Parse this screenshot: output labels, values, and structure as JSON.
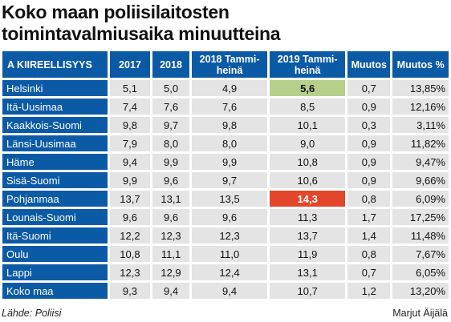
{
  "header": {
    "title_line1": "Koko maan poliisilaitosten",
    "title_line2": "toimintavalmiusaika minuutteina"
  },
  "table": {
    "columns": [
      "A KIIREELLISYYS",
      "2017",
      "2018",
      "2018 Tammi-heinä",
      "2019 Tammi-heinä",
      "Muutos",
      "Muutos %"
    ],
    "rows": [
      [
        "Helsinki",
        "5,1",
        "5,0",
        "4,9",
        "5,6",
        "0,7",
        "13,85%"
      ],
      [
        "Itä-Uusimaa",
        "7,4",
        "7,6",
        "7,6",
        "8,5",
        "0,9",
        "12,16%"
      ],
      [
        "Kaakkois-Suomi",
        "9,8",
        "9,7",
        "9,8",
        "10,1",
        "0,3",
        "3,11%"
      ],
      [
        "Länsi-Uusimaa",
        "7,9",
        "8,0",
        "8,0",
        "9,0",
        "0,9",
        "11,82%"
      ],
      [
        "Häme",
        "9,4",
        "9,9",
        "9,9",
        "10,8",
        "0,9",
        "9,47%"
      ],
      [
        "Sisä-Suomi",
        "9,9",
        "9,6",
        "9,7",
        "10,6",
        "0,9",
        "9,66%"
      ],
      [
        "Pohjanmaa",
        "13,7",
        "13,1",
        "13,5",
        "14,3",
        "0,8",
        "6,09%"
      ],
      [
        "Lounais-Suomi",
        "9,6",
        "9,6",
        "9,6",
        "11,3",
        "1,7",
        "17,25%"
      ],
      [
        "Itä-Suomi",
        "12,2",
        "12,3",
        "12,3",
        "13,7",
        "1,4",
        "11,48%"
      ],
      [
        "Oulu",
        "10,8",
        "11,1",
        "11,0",
        "11,9",
        "0,8",
        "7,67%"
      ],
      [
        "Lappi",
        "12,3",
        "12,9",
        "12,4",
        "13,1",
        "0,7",
        "6,05%"
      ],
      [
        "Koko maa",
        "9,3",
        "9,4",
        "9,4",
        "10,7",
        "1,2",
        "13,20%"
      ]
    ]
  },
  "footer": {
    "source": "Lähde: Poliisi",
    "author": "Marjut Äijälä"
  }
}
